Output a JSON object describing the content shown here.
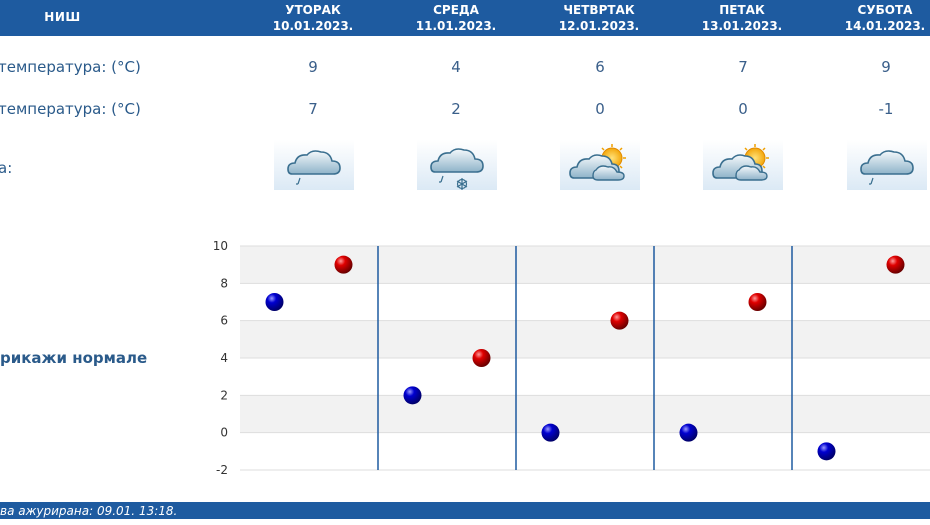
{
  "header": {
    "city": "НИШ",
    "days": [
      {
        "name": "УТОРАК",
        "date": "10.01.2023."
      },
      {
        "name": "СРЕДА",
        "date": "11.01.2023."
      },
      {
        "name": "ЧЕТВРТАК",
        "date": "12.01.2023."
      },
      {
        "name": "ПЕТАК",
        "date": "13.01.2023."
      },
      {
        "name": "СУБОТА",
        "date": "14.01.2023."
      }
    ]
  },
  "rows": {
    "max_label": "температура: (°C)",
    "min_label": "температура: (°C)",
    "icon_label": "а:"
  },
  "forecast": {
    "max": [
      "9",
      "4",
      "6",
      "7",
      "9"
    ],
    "min": [
      "7",
      "2",
      "0",
      "0",
      "-1"
    ],
    "icons": [
      "cloud-rain-icon",
      "cloud-sleet-icon",
      "partly-cloudy-icon",
      "partly-cloudy-icon",
      "cloud-rain-icon"
    ]
  },
  "normals_link": "рикажи нормале",
  "footer": {
    "text": "ва ажурирана:  09.01. 13:18."
  },
  "colors": {
    "header": "#1e5ba0",
    "max_marker": "#d40000",
    "min_marker": "#0000cc",
    "grid_band": "#f2f2f2"
  },
  "chart_data": {
    "type": "scatter",
    "categories": [
      "УТОРАК",
      "СРЕДА",
      "ЧЕТВРТАК",
      "ПЕТАК",
      "СУБОТА"
    ],
    "series": [
      {
        "values": [
          9,
          4,
          6,
          7,
          9
        ]
      },
      {
        "values": [
          7,
          2,
          0,
          0,
          -1
        ]
      }
    ],
    "yticks": [
      10,
      8,
      6,
      4,
      2,
      0,
      -2
    ],
    "ylim": [
      -2,
      10
    ],
    "grid": true
  }
}
